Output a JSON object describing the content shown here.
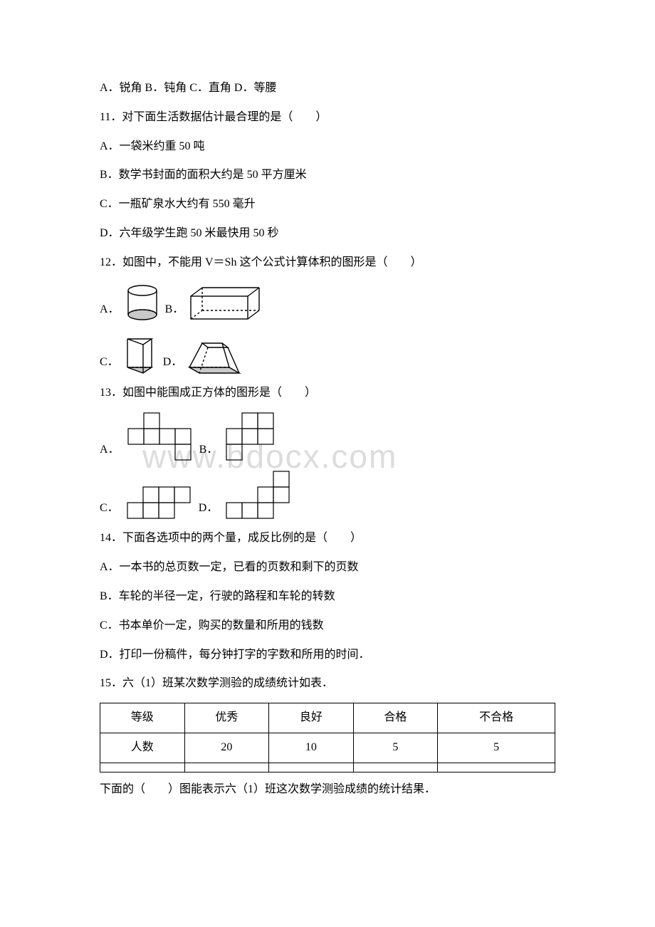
{
  "watermark": "www.bdocx.com",
  "q10_options": "A．锐角 B．钝角 C．直角 D．等腰",
  "q11": {
    "stem": "11．对下面生活数据估计最合理的是（　　）",
    "A": "A．一袋米约重 50 吨",
    "B": "B．数学书封面的面积大约是 50 平方厘米",
    "C": "C．一瓶矿泉水大约有 550 毫升",
    "D": "D．六年级学生跑 50 米最快用 50 秒"
  },
  "q12": {
    "stem": "12．如图中，不能用 V＝Sh 这个公式计算体积的图形是（　　）",
    "lblA": "A．",
    "lblB": "B．",
    "lblC": "C．",
    "lblD": "D．"
  },
  "q13": {
    "stem": "13．如图中能围成正方体的图形是（　　）",
    "lblA": "A．",
    "lblB": "B．",
    "lblC": "C．",
    "lblD": "D．"
  },
  "q14": {
    "stem": "14．下面各选项中的两个量，成反比例的是（　　）",
    "A": "A．一本书的总页数一定，已看的页数和剩下的页数",
    "B": "B．车轮的半径一定，行驶的路程和车轮的转数",
    "C": "C．书本单价一定，购买的数量和所用的钱数",
    "D": "D．打印一份稿件，每分钟打字的字数和所用的时间．"
  },
  "q15": {
    "stem": "15．六（1）班某次数学测验的成绩统计如表．",
    "footer": "下面的（　　）图能表示六（1）班这次数学测验成绩的统计结果．",
    "table": {
      "headers": [
        "等级",
        "优秀",
        "良好",
        "合格",
        "不合格"
      ],
      "row2": [
        "人数",
        "20",
        "10",
        "5",
        "5"
      ],
      "row3": [
        "",
        "",
        "",
        "",
        ""
      ]
    }
  },
  "svg": {
    "stroke": "#000000",
    "fill_gray": "#c9c9c9",
    "fill_none": "none",
    "sw": 1.4,
    "dash": "3,3"
  },
  "nets": {
    "cell": 22,
    "stroke": "#000000",
    "sw": 1.2,
    "A": [
      [
        1,
        0
      ],
      [
        0,
        1
      ],
      [
        1,
        1
      ],
      [
        2,
        1
      ],
      [
        3,
        1
      ],
      [
        3,
        2
      ]
    ],
    "B": [
      [
        1,
        0
      ],
      [
        2,
        0
      ],
      [
        0,
        1
      ],
      [
        1,
        1
      ],
      [
        2,
        1
      ],
      [
        0,
        2
      ]
    ],
    "C": [
      [
        1,
        0
      ],
      [
        2,
        0
      ],
      [
        3,
        0
      ],
      [
        0,
        1
      ],
      [
        1,
        1
      ],
      [
        2,
        1
      ]
    ],
    "D": [
      [
        3,
        0
      ],
      [
        2,
        1
      ],
      [
        3,
        1
      ],
      [
        0,
        2
      ],
      [
        1,
        2
      ],
      [
        2,
        2
      ]
    ]
  }
}
